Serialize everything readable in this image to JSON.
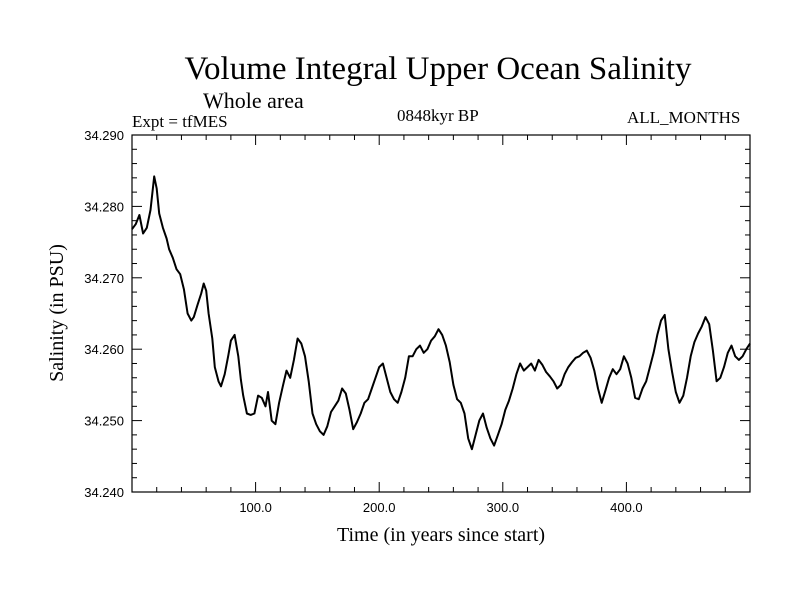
{
  "chart_data": {
    "type": "line",
    "title": "Volume Integral Upper Ocean Salinity",
    "subtitle": "Whole area",
    "experiment": "Expt = tfMES",
    "period": "0848kyr BP",
    "months": "ALL_MONTHS",
    "xlabel": "Time (in years since start)",
    "ylabel": "Salinity (in PSU)",
    "xlim": [
      0,
      500
    ],
    "ylim": [
      34.24,
      34.29
    ],
    "x_ticks": [
      100,
      200,
      300,
      400
    ],
    "x_tick_labels": [
      "100.0",
      "200.0",
      "300.0",
      "400.0"
    ],
    "y_ticks": [
      34.24,
      34.25,
      34.26,
      34.27,
      34.28,
      34.29
    ],
    "y_tick_labels": [
      "34.240",
      "34.250",
      "34.260",
      "34.270",
      "34.280",
      "34.290"
    ],
    "series": [
      {
        "name": "salinity",
        "x": [
          0,
          3,
          6,
          9,
          12,
          15,
          18,
          20,
          22,
          25,
          28,
          30,
          33,
          36,
          39,
          42,
          45,
          48,
          50,
          53,
          56,
          58,
          60,
          62,
          65,
          67,
          70,
          72,
          75,
          78,
          80,
          83,
          86,
          88,
          90,
          93,
          96,
          99,
          102,
          105,
          108,
          110,
          113,
          116,
          119,
          122,
          125,
          128,
          131,
          134,
          137,
          140,
          143,
          146,
          149,
          152,
          155,
          158,
          161,
          164,
          167,
          170,
          173,
          176,
          179,
          182,
          185,
          188,
          191,
          194,
          197,
          200,
          203,
          206,
          209,
          212,
          215,
          218,
          221,
          224,
          227,
          230,
          233,
          236,
          239,
          242,
          245,
          248,
          251,
          254,
          257,
          260,
          263,
          266,
          269,
          272,
          275,
          278,
          281,
          284,
          287,
          290,
          293,
          296,
          299,
          302,
          305,
          308,
          311,
          314,
          317,
          320,
          323,
          326,
          329,
          332,
          335,
          338,
          341,
          344,
          347,
          350,
          353,
          356,
          359,
          362,
          365,
          368,
          371,
          374,
          377,
          380,
          383,
          386,
          389,
          392,
          395,
          398,
          401,
          404,
          407,
          410,
          413,
          416,
          419,
          422,
          425,
          428,
          431,
          434,
          437,
          440,
          443,
          446,
          449,
          452,
          455,
          458,
          461,
          464,
          467,
          470,
          473,
          476,
          479,
          482,
          485,
          488,
          491,
          494,
          497,
          500
        ],
        "values": [
          34.2768,
          34.2775,
          34.2788,
          34.2762,
          34.277,
          34.2795,
          34.2842,
          34.2825,
          34.279,
          34.277,
          34.2755,
          34.274,
          34.2728,
          34.2712,
          34.2705,
          34.2684,
          34.265,
          34.264,
          34.2645,
          34.2662,
          34.2678,
          34.2692,
          34.2682,
          34.265,
          34.2615,
          34.2575,
          34.2555,
          34.2548,
          34.2565,
          34.2592,
          34.2612,
          34.262,
          34.259,
          34.2558,
          34.2535,
          34.251,
          34.2508,
          34.251,
          34.2535,
          34.2532,
          34.252,
          34.254,
          34.25,
          34.2495,
          34.2525,
          34.2548,
          34.257,
          34.256,
          34.2585,
          34.2615,
          34.2608,
          34.259,
          34.2555,
          34.251,
          34.2495,
          34.2485,
          34.248,
          34.2492,
          34.2512,
          34.252,
          34.2528,
          34.2545,
          34.2538,
          34.2515,
          34.2488,
          34.2498,
          34.251,
          34.2525,
          34.253,
          34.2545,
          34.256,
          34.2575,
          34.258,
          34.256,
          34.254,
          34.253,
          34.2525,
          34.254,
          34.256,
          34.259,
          34.259,
          34.26,
          34.2605,
          34.2595,
          34.26,
          34.2612,
          34.2618,
          34.2628,
          34.262,
          34.2605,
          34.2582,
          34.255,
          34.253,
          34.2525,
          34.251,
          34.2475,
          34.246,
          34.248,
          34.25,
          34.251,
          34.249,
          34.2475,
          34.2465,
          34.248,
          34.2495,
          34.2515,
          34.2528,
          34.2545,
          34.2565,
          34.258,
          34.257,
          34.2575,
          34.258,
          34.257,
          34.2585,
          34.2578,
          34.2568,
          34.2562,
          34.2555,
          34.2545,
          34.255,
          34.2565,
          34.2575,
          34.2582,
          34.2588,
          34.259,
          34.2595,
          34.2598,
          34.2588,
          34.257,
          34.2545,
          34.2525,
          34.2542,
          34.256,
          34.2572,
          34.2565,
          34.2572,
          34.259,
          34.258,
          34.256,
          34.2532,
          34.253,
          34.2545,
          34.2555,
          34.2575,
          34.2595,
          34.262,
          34.264,
          34.2648,
          34.26,
          34.2568,
          34.254,
          34.2525,
          34.2535,
          34.256,
          34.259,
          34.261,
          34.2622,
          34.2632,
          34.2645,
          34.2635,
          34.2598,
          34.2555,
          34.256,
          34.2575,
          34.2595,
          34.2605,
          34.259,
          34.2585,
          34.259,
          34.26,
          34.2608
        ]
      }
    ]
  }
}
